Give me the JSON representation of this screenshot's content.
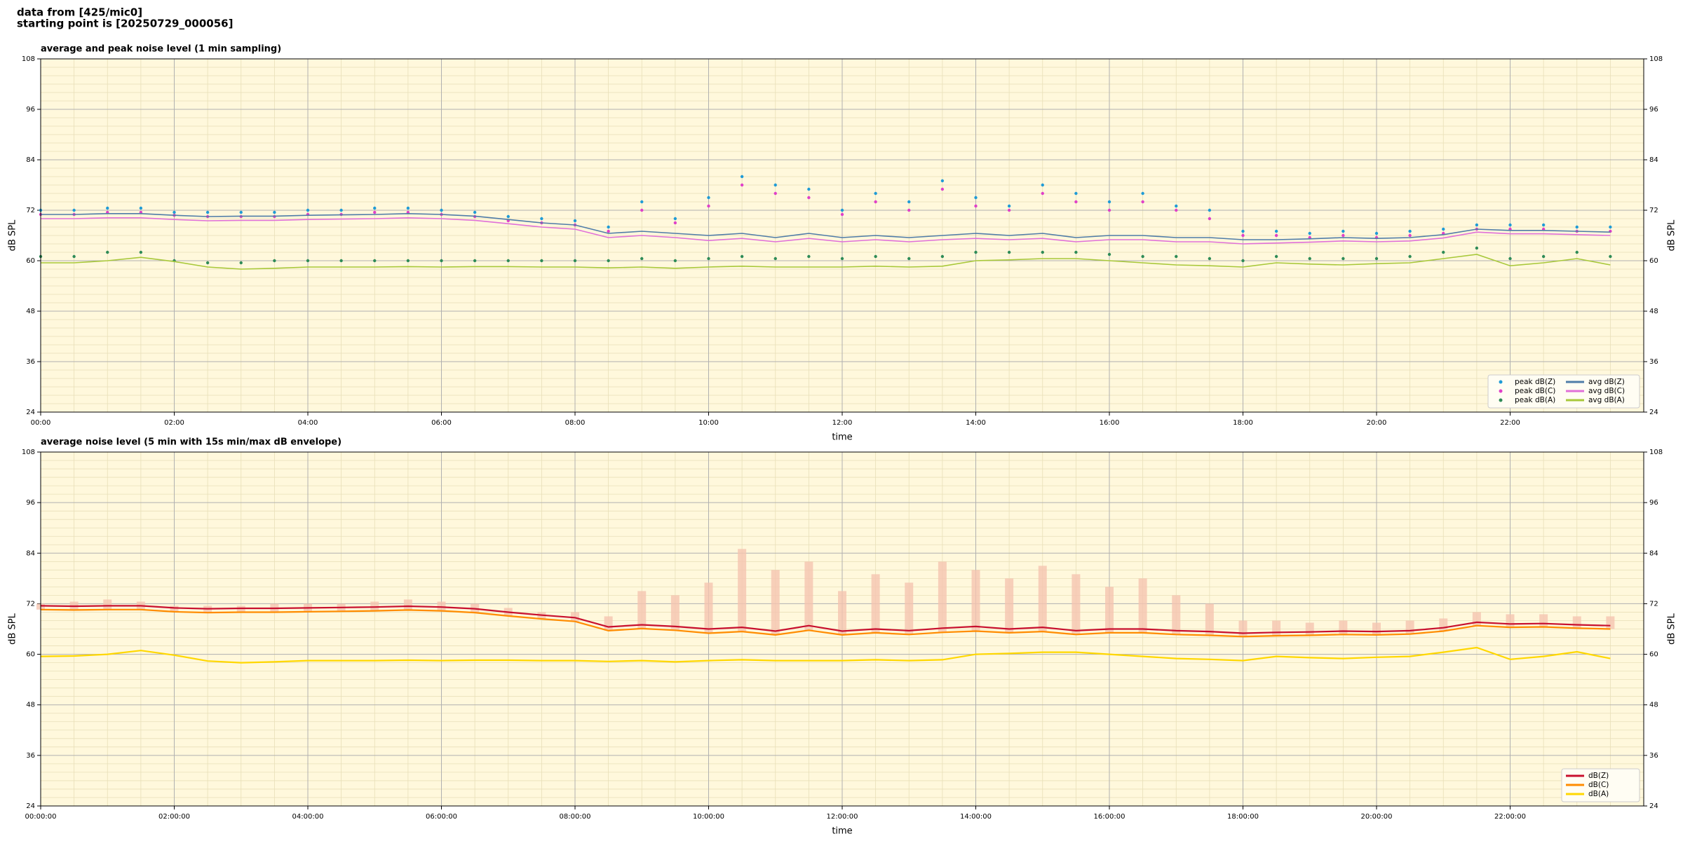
{
  "header": {
    "lines": [
      "data from [425/mic0]",
      "starting point is [20250729_000056]"
    ]
  },
  "chart_data": [
    {
      "type": "line",
      "title": "average and peak noise level (1 min sampling)",
      "x_label": "time",
      "y_label": "dB SPL",
      "x": [
        "00:00",
        "00:30",
        "01:00",
        "01:30",
        "02:00",
        "02:30",
        "03:00",
        "03:30",
        "04:00",
        "04:30",
        "05:00",
        "05:30",
        "06:00",
        "06:30",
        "07:00",
        "07:30",
        "08:00",
        "08:30",
        "09:00",
        "09:30",
        "10:00",
        "10:30",
        "11:00",
        "11:30",
        "12:00",
        "12:30",
        "13:00",
        "13:30",
        "14:00",
        "14:30",
        "15:00",
        "15:30",
        "16:00",
        "16:30",
        "17:00",
        "17:30",
        "18:00",
        "18:30",
        "19:00",
        "19:30",
        "20:00",
        "20:30",
        "21:00",
        "21:30",
        "22:00",
        "22:30",
        "23:00",
        "23:30"
      ],
      "xlim": [
        "00:00",
        "24:00"
      ],
      "xticks": [
        "00:00",
        "02:00",
        "04:00",
        "06:00",
        "08:00",
        "10:00",
        "12:00",
        "14:00",
        "16:00",
        "18:00",
        "20:00",
        "22:00"
      ],
      "ylim": [
        24,
        108
      ],
      "yticks": [
        24,
        36,
        48,
        60,
        72,
        84,
        96,
        108
      ],
      "grid": true,
      "minor_grid": true,
      "legend": "lower right",
      "legend_columns": 2,
      "series": [
        {
          "name": "peak dB(Z)",
          "type": "scatter",
          "color": "#1f9bd6",
          "values": [
            72,
            72,
            72.5,
            72.5,
            71.5,
            71.5,
            71.5,
            71.5,
            72,
            72,
            72.5,
            72.5,
            72,
            71.5,
            70.5,
            70,
            69.5,
            68,
            74,
            70,
            75,
            80,
            78,
            77,
            72,
            76,
            74,
            79,
            75,
            73,
            78,
            76,
            74,
            76,
            73,
            72,
            67,
            67,
            66.5,
            67,
            66.5,
            67,
            67.5,
            68.5,
            68.5,
            68.5,
            68,
            68
          ]
        },
        {
          "name": "peak dB(C)",
          "type": "scatter",
          "color": "#e040c8",
          "values": [
            71,
            71,
            71.5,
            71.5,
            70.8,
            70.5,
            70.5,
            70.5,
            71,
            71,
            71.5,
            71.5,
            71,
            70.5,
            69.5,
            69,
            68.5,
            67,
            72,
            69,
            73,
            78,
            76,
            75,
            71,
            74,
            72,
            77,
            73,
            72,
            76,
            74,
            72,
            74,
            72,
            70,
            66,
            66,
            65.5,
            66,
            65.5,
            66,
            66.5,
            67.5,
            67.5,
            67.5,
            67,
            67
          ]
        },
        {
          "name": "peak dB(A)",
          "type": "scatter",
          "color": "#2e8b57",
          "values": [
            61,
            61,
            62,
            62,
            60,
            59.5,
            59.5,
            60,
            60,
            60,
            60,
            60,
            60,
            60,
            60,
            60,
            60,
            60,
            60.5,
            60,
            60.5,
            61,
            60.5,
            61,
            60.5,
            61,
            60.5,
            61,
            62,
            62,
            62,
            62,
            61.5,
            61,
            61,
            60.5,
            60,
            61,
            60.5,
            60.5,
            60.5,
            61,
            62,
            63,
            60.5,
            61,
            62,
            61
          ]
        },
        {
          "name": "avg dB(Z)",
          "type": "line",
          "color": "#4f7ca8",
          "values": [
            71,
            71,
            71.2,
            71.2,
            70.8,
            70.5,
            70.6,
            70.6,
            70.8,
            70.9,
            71,
            71.2,
            71,
            70.6,
            69.8,
            69,
            68.5,
            66.5,
            67,
            66.5,
            66,
            66.5,
            65.5,
            66.5,
            65.5,
            66,
            65.5,
            66,
            66.5,
            66,
            66.5,
            65.5,
            66,
            66,
            65.5,
            65.5,
            65,
            65,
            65.2,
            65.5,
            65.3,
            65.5,
            66.2,
            67.5,
            67.2,
            67.2,
            67,
            66.8
          ]
        },
        {
          "name": "avg dB(C)",
          "type": "line",
          "color": "#e070d8",
          "values": [
            70,
            70,
            70.2,
            70.2,
            69.8,
            69.5,
            69.6,
            69.6,
            69.8,
            69.9,
            70,
            70.2,
            70,
            69.6,
            68.8,
            68,
            67.5,
            65.5,
            66,
            65.5,
            64.8,
            65.3,
            64.5,
            65.3,
            64.5,
            65,
            64.5,
            65,
            65.3,
            65,
            65.3,
            64.5,
            65,
            65,
            64.5,
            64.5,
            64,
            64.2,
            64.4,
            64.7,
            64.5,
            64.7,
            65.4,
            66.8,
            66.4,
            66.4,
            66.2,
            66
          ]
        },
        {
          "name": "avg dB(A)",
          "type": "line",
          "color": "#a8c83a",
          "values": [
            59.5,
            59.5,
            60,
            60.8,
            59.8,
            58.5,
            58,
            58.2,
            58.5,
            58.5,
            58.5,
            58.6,
            58.5,
            58.6,
            58.6,
            58.5,
            58.5,
            58.3,
            58.5,
            58.2,
            58.5,
            58.7,
            58.5,
            58.5,
            58.5,
            58.7,
            58.5,
            58.7,
            60,
            60.2,
            60.5,
            60.5,
            60,
            59.5,
            59,
            58.8,
            58.5,
            59.5,
            59.2,
            59,
            59.3,
            59.5,
            60.5,
            61.5,
            58.8,
            59.5,
            60.5,
            59
          ]
        }
      ]
    },
    {
      "type": "envelope",
      "title": "average noise level (5 min with 15s min/max dB envelope)",
      "x_label": "time",
      "y_label": "dB SPL",
      "x": [
        "00:00:00",
        "00:30:00",
        "01:00:00",
        "01:30:00",
        "02:00:00",
        "02:30:00",
        "03:00:00",
        "03:30:00",
        "04:00:00",
        "04:30:00",
        "05:00:00",
        "05:30:00",
        "06:00:00",
        "06:30:00",
        "07:00:00",
        "07:30:00",
        "08:00:00",
        "08:30:00",
        "09:00:00",
        "09:30:00",
        "10:00:00",
        "10:30:00",
        "11:00:00",
        "11:30:00",
        "12:00:00",
        "12:30:00",
        "13:00:00",
        "13:30:00",
        "14:00:00",
        "14:30:00",
        "15:00:00",
        "15:30:00",
        "16:00:00",
        "16:30:00",
        "17:00:00",
        "17:30:00",
        "18:00:00",
        "18:30:00",
        "19:00:00",
        "19:30:00",
        "20:00:00",
        "20:30:00",
        "21:00:00",
        "21:30:00",
        "22:00:00",
        "22:30:00",
        "23:00:00",
        "23:30:00"
      ],
      "xlim": [
        "00:00:00",
        "24:00:00"
      ],
      "xticks": [
        "00:00:00",
        "02:00:00",
        "04:00:00",
        "06:00:00",
        "08:00:00",
        "10:00:00",
        "12:00:00",
        "14:00:00",
        "16:00:00",
        "18:00:00",
        "20:00:00",
        "22:00:00"
      ],
      "ylim": [
        24,
        108
      ],
      "yticks": [
        24,
        36,
        48,
        60,
        72,
        84,
        96,
        108
      ],
      "grid": true,
      "minor_grid": true,
      "legend": "lower right",
      "legend_columns": 1,
      "envelope": {
        "color": "#f5c4b0",
        "values": [
          72,
          72.5,
          73,
          72.5,
          71.5,
          71.5,
          71.5,
          72,
          72,
          72,
          72.5,
          73,
          72.5,
          72,
          71,
          70,
          70,
          69,
          75,
          74,
          77,
          85,
          80,
          82,
          75,
          79,
          77,
          82,
          80,
          78,
          81,
          79,
          76,
          78,
          74,
          72,
          68,
          68,
          67.5,
          68,
          67.5,
          68,
          68.5,
          70,
          69.5,
          69.5,
          69,
          69
        ]
      },
      "series": [
        {
          "name": "dB(Z)",
          "type": "line",
          "color": "#c8102e",
          "values": [
            71.5,
            71.4,
            71.5,
            71.5,
            71,
            70.8,
            70.9,
            70.9,
            71,
            71.1,
            71.2,
            71.4,
            71.2,
            70.8,
            70,
            69.3,
            68.7,
            66.5,
            67,
            66.6,
            66,
            66.4,
            65.5,
            66.8,
            65.5,
            66,
            65.6,
            66.2,
            66.6,
            66,
            66.4,
            65.6,
            66,
            66,
            65.6,
            65.4,
            65,
            65.2,
            65.3,
            65.5,
            65.4,
            65.6,
            66.3,
            67.6,
            67.2,
            67.3,
            67,
            66.8
          ]
        },
        {
          "name": "dB(C)",
          "type": "line",
          "color": "#ff8c00",
          "values": [
            70.6,
            70.5,
            70.6,
            70.6,
            70.1,
            69.9,
            70,
            70,
            70.1,
            70.2,
            70.3,
            70.5,
            70.3,
            69.9,
            69.1,
            68.4,
            67.8,
            65.6,
            66.1,
            65.7,
            65,
            65.4,
            64.6,
            65.7,
            64.6,
            65.1,
            64.7,
            65.2,
            65.5,
            65.1,
            65.4,
            64.7,
            65.1,
            65.1,
            64.7,
            64.5,
            64.2,
            64.4,
            64.5,
            64.7,
            64.6,
            64.8,
            65.5,
            66.8,
            66.4,
            66.5,
            66.2,
            66
          ]
        },
        {
          "name": "dB(A)",
          "type": "line",
          "color": "#ffd700",
          "values": [
            59.5,
            59.6,
            60,
            60.9,
            59.8,
            58.4,
            58,
            58.2,
            58.5,
            58.5,
            58.5,
            58.6,
            58.5,
            58.6,
            58.6,
            58.5,
            58.5,
            58.3,
            58.5,
            58.2,
            58.5,
            58.7,
            58.5,
            58.5,
            58.5,
            58.7,
            58.5,
            58.7,
            60,
            60.2,
            60.5,
            60.5,
            60,
            59.5,
            59,
            58.8,
            58.5,
            59.5,
            59.2,
            59,
            59.3,
            59.5,
            60.5,
            61.6,
            58.8,
            59.5,
            60.6,
            59
          ]
        }
      ]
    }
  ]
}
